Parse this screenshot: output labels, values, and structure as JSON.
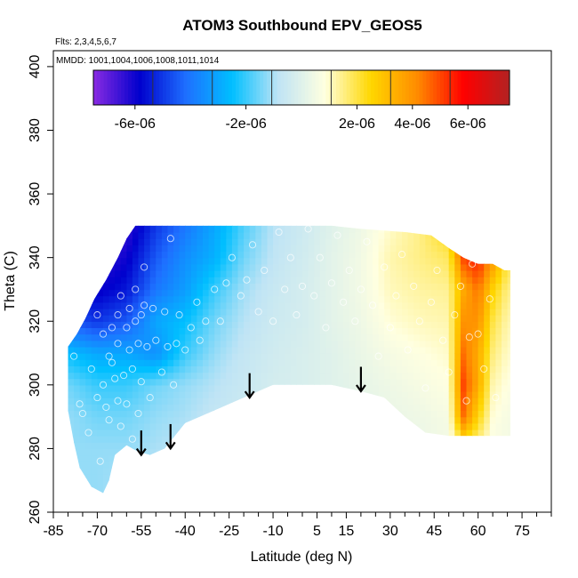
{
  "chart_data": {
    "type": "heatmap",
    "title": "ATOM3 Southbound EPV_GEOS5",
    "flights_note": "Flts: 2,3,4,5,6,7",
    "dates_note": "MMDD: 1001,1004,1006,1008,1011,1014",
    "xlabel": "Latitude (deg N)",
    "ylabel": "Theta (C)",
    "xlim": [
      -85,
      85
    ],
    "ylim": [
      260,
      405
    ],
    "x_ticks": [
      -85,
      -70,
      -55,
      -40,
      -25,
      -10,
      5,
      15,
      30,
      45,
      60,
      75
    ],
    "x_minor_ticks": [
      -80,
      -75,
      -65,
      -60,
      -50,
      -45,
      -35,
      -30,
      -20,
      -15,
      -5,
      0,
      10,
      20,
      25,
      35,
      40,
      50,
      55,
      65,
      70,
      80,
      85
    ],
    "y_ticks": [
      260,
      280,
      300,
      320,
      340,
      360,
      380,
      400
    ],
    "colorbar": {
      "min": -7.5e-06,
      "max": 7.5e-06,
      "tick_values": [
        -6e-06,
        -2e-06,
        2e-06,
        4e-06,
        6e-06
      ],
      "tick_labels": [
        "-6e-06",
        "-2e-06",
        "2e-06",
        "4e-06",
        "6e-06"
      ],
      "colors": [
        "#8a2be2",
        "#0000cd",
        "#1e6fff",
        "#00bfff",
        "#bfe4f5",
        "#ffffe0",
        "#ffd700",
        "#ff8c00",
        "#ff0000",
        "#b22222"
      ]
    },
    "field": {
      "latitudes": [
        -80,
        -70,
        -60,
        -50,
        -40,
        -30,
        -20,
        -10,
        0,
        10,
        20,
        30,
        40,
        50,
        55,
        60,
        65,
        70
      ],
      "theta_levels": [
        270,
        280,
        290,
        300,
        310,
        320,
        330,
        340,
        350
      ],
      "values": [
        [
          -1.2e-06,
          -1.2e-06,
          -1.2e-06,
          -1.5e-06,
          -2.5e-06,
          -4.5e-06,
          -5.5e-06,
          -7e-06,
          -7.5e-06
        ],
        [
          -1.2e-06,
          -1.2e-06,
          -1.5e-06,
          -2e-06,
          -3e-06,
          -5e-06,
          -6e-06,
          -6.5e-06,
          -7e-06
        ],
        [
          -1e-06,
          -1.2e-06,
          -1.5e-06,
          -2e-06,
          -3e-06,
          -4.5e-06,
          -5.5e-06,
          -6e-06,
          -6.5e-06
        ],
        [
          -8e-07,
          -1e-06,
          -1.2e-06,
          -1.5e-06,
          -3.5e-06,
          -3e-06,
          -4e-06,
          -4.5e-06,
          -5e-06
        ],
        [
          -6e-07,
          -8e-07,
          -1e-06,
          -1.2e-06,
          -2e-06,
          -2.5e-06,
          -3.2e-06,
          -3.5e-06,
          -4e-06
        ],
        [
          -5e-07,
          -6e-07,
          -7e-07,
          -9e-07,
          -1.2e-06,
          -1.5e-06,
          -2e-06,
          -2.8e-06,
          -3e-06
        ],
        [
          -4e-07,
          -5e-07,
          -5e-07,
          -6e-07,
          -7e-07,
          -9e-07,
          -1.1e-06,
          -1.5e-06,
          -1.8e-06
        ],
        [
          -3e-07,
          -3e-07,
          -3e-07,
          -3e-07,
          -4e-07,
          -5e-07,
          -6e-07,
          -8e-07,
          -9e-07
        ],
        [
          -2e-07,
          -2e-07,
          -2e-07,
          -2e-07,
          -2e-07,
          -3e-07,
          -3e-07,
          -4e-07,
          -5e-07
        ],
        [
          -1e-07,
          -1e-07,
          -1e-07,
          0,
          0,
          1e-07,
          1e-07,
          1e-07,
          0
        ],
        [
          0,
          0,
          1e-07,
          2e-07,
          3e-07,
          4e-07,
          5e-07,
          5e-07,
          4e-07
        ],
        [
          2e-07,
          2e-07,
          3e-07,
          4e-07,
          6e-07,
          9e-07,
          1.1e-06,
          1.2e-06,
          1e-06
        ],
        [
          3e-07,
          3e-07,
          4e-07,
          6e-07,
          8e-07,
          1.1e-06,
          1.3e-06,
          1.5e-06,
          1.5e-06
        ],
        [
          4e-07,
          5e-07,
          6e-07,
          8e-07,
          1e-06,
          1.2e-06,
          1.4e-06,
          1.8e-06,
          2.5e-06
        ],
        [
          6e-07,
          1.5e-06,
          4.5e-06,
          5e-06,
          4.5e-06,
          4e-06,
          3.5e-06,
          5e-06,
          6.5e-06
        ],
        [
          5e-07,
          1.2e-06,
          2.5e-06,
          3.5e-06,
          3.5e-06,
          4e-06,
          4.5e-06,
          5.5e-06,
          6.5e-06
        ],
        [
          4e-07,
          6e-07,
          9e-07,
          1.2e-06,
          1.6e-06,
          2e-06,
          2.6e-06,
          4e-06,
          6e-06
        ],
        [
          4e-07,
          5e-07,
          6e-07,
          8e-07,
          1e-06,
          1.2e-06,
          1.5e-06,
          2e-06,
          2.5e-06
        ]
      ],
      "domain_top": [
        [
          -80,
          312
        ],
        [
          -77,
          316
        ],
        [
          -74,
          321
        ],
        [
          -71,
          327
        ],
        [
          -67,
          333
        ],
        [
          -63,
          340
        ],
        [
          -60,
          346
        ],
        [
          -57,
          350
        ],
        [
          -45,
          350
        ],
        [
          -30,
          350
        ],
        [
          -20,
          350
        ],
        [
          -10,
          350
        ],
        [
          0,
          350
        ],
        [
          10,
          350
        ],
        [
          20,
          349
        ],
        [
          35,
          348
        ],
        [
          44,
          347
        ],
        [
          50,
          343
        ],
        [
          55,
          340
        ],
        [
          60,
          338
        ],
        [
          65,
          338
        ],
        [
          69,
          336
        ],
        [
          71,
          336
        ]
      ],
      "domain_bottom": [
        [
          71,
          284
        ],
        [
          60,
          284
        ],
        [
          50,
          284
        ],
        [
          42,
          285
        ],
        [
          35,
          290
        ],
        [
          28,
          296
        ],
        [
          20,
          298
        ],
        [
          10,
          300
        ],
        [
          0,
          300
        ],
        [
          -10,
          300
        ],
        [
          -20,
          296
        ],
        [
          -30,
          292
        ],
        [
          -40,
          288
        ],
        [
          -47,
          280
        ],
        [
          -52,
          278
        ],
        [
          -56,
          279
        ],
        [
          -60,
          281
        ],
        [
          -64,
          278
        ],
        [
          -66,
          270
        ],
        [
          -68,
          266
        ],
        [
          -72,
          268
        ],
        [
          -76,
          274
        ],
        [
          -78,
          282
        ],
        [
          -80,
          292
        ]
      ]
    },
    "observations": [
      [
        -78,
        309
      ],
      [
        -76,
        294
      ],
      [
        -75,
        291
      ],
      [
        -73,
        285
      ],
      [
        -72,
        305
      ],
      [
        -70,
        322
      ],
      [
        -70,
        296
      ],
      [
        -69,
        276
      ],
      [
        -68,
        316
      ],
      [
        -68,
        300
      ],
      [
        -67,
        293
      ],
      [
        -66,
        309
      ],
      [
        -66,
        289
      ],
      [
        -65,
        318
      ],
      [
        -65,
        307
      ],
      [
        -64,
        302
      ],
      [
        -63,
        322
      ],
      [
        -63,
        313
      ],
      [
        -63,
        295
      ],
      [
        -62,
        287
      ],
      [
        -62,
        328
      ],
      [
        -61,
        303
      ],
      [
        -60,
        318
      ],
      [
        -60,
        294
      ],
      [
        -59,
        324
      ],
      [
        -59,
        311
      ],
      [
        -58,
        305
      ],
      [
        -58,
        283
      ],
      [
        -57,
        330
      ],
      [
        -57,
        320
      ],
      [
        -56,
        313
      ],
      [
        -56,
        291
      ],
      [
        -55,
        322
      ],
      [
        -55,
        301
      ],
      [
        -54,
        337
      ],
      [
        -54,
        325
      ],
      [
        -53,
        312
      ],
      [
        -52,
        296
      ],
      [
        -51,
        324
      ],
      [
        -50,
        314
      ],
      [
        -48,
        304
      ],
      [
        -47,
        323
      ],
      [
        -46,
        312
      ],
      [
        -45,
        346
      ],
      [
        -44,
        300
      ],
      [
        -43,
        313
      ],
      [
        -42,
        322
      ],
      [
        -40,
        311
      ],
      [
        -38,
        318
      ],
      [
        -36,
        326
      ],
      [
        -35,
        314
      ],
      [
        -33,
        320
      ],
      [
        -30,
        330
      ],
      [
        -28,
        320
      ],
      [
        -26,
        332
      ],
      [
        -24,
        340
      ],
      [
        -21,
        328
      ],
      [
        -19,
        333
      ],
      [
        -17,
        344
      ],
      [
        -15,
        323
      ],
      [
        -13,
        336
      ],
      [
        -10,
        320
      ],
      [
        -8,
        348
      ],
      [
        -6,
        330
      ],
      [
        -4,
        340
      ],
      [
        -2,
        322
      ],
      [
        0,
        331
      ],
      [
        2,
        349
      ],
      [
        4,
        328
      ],
      [
        6,
        340
      ],
      [
        8,
        318
      ],
      [
        10,
        332
      ],
      [
        12,
        347
      ],
      [
        14,
        326
      ],
      [
        16,
        336
      ],
      [
        18,
        320
      ],
      [
        20,
        330
      ],
      [
        22,
        345
      ],
      [
        24,
        325
      ],
      [
        26,
        309
      ],
      [
        28,
        337
      ],
      [
        30,
        318
      ],
      [
        32,
        328
      ],
      [
        34,
        341
      ],
      [
        36,
        311
      ],
      [
        38,
        331
      ],
      [
        40,
        320
      ],
      [
        42,
        299
      ],
      [
        44,
        326
      ],
      [
        46,
        336
      ],
      [
        48,
        314
      ],
      [
        50,
        304
      ],
      [
        52,
        322
      ],
      [
        54,
        331
      ],
      [
        56,
        295
      ],
      [
        57,
        315
      ],
      [
        58,
        338
      ],
      [
        60,
        316
      ],
      [
        62,
        305
      ],
      [
        64,
        327
      ],
      [
        66,
        296
      ],
      [
        68,
        338
      ]
    ],
    "arrows": [
      {
        "lat": -55,
        "theta_top": 284,
        "theta_bottom": 278
      },
      {
        "lat": -45,
        "theta_top": 286,
        "theta_bottom": 280
      },
      {
        "lat": -18,
        "theta_top": 302,
        "theta_bottom": 296
      },
      {
        "lat": 20,
        "theta_top": 304,
        "theta_bottom": 298
      }
    ]
  }
}
